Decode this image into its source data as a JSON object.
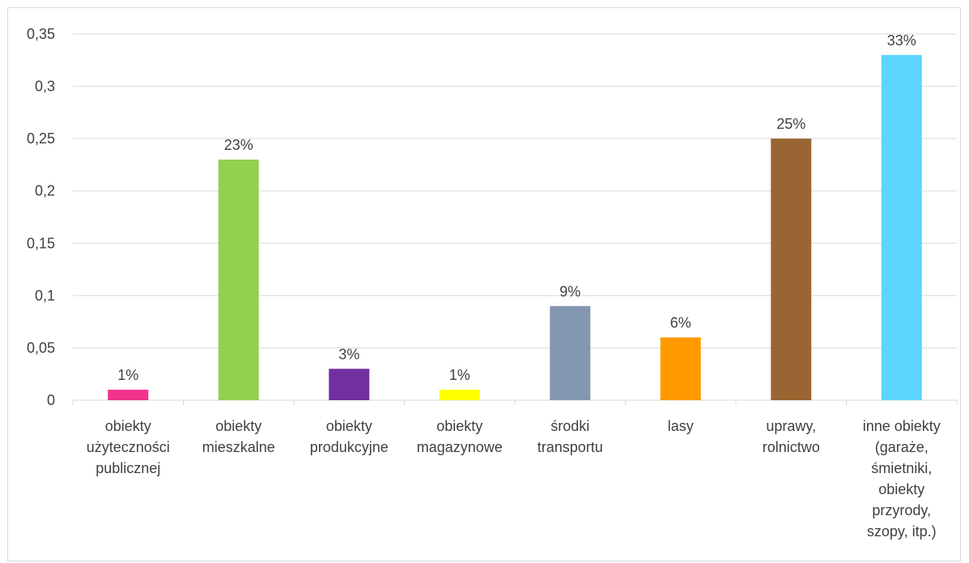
{
  "chart_data": {
    "type": "bar",
    "categories": [
      [
        "obiekty",
        "użyteczności",
        "publicznej"
      ],
      [
        "obiekty",
        "mieszkalne"
      ],
      [
        "obiekty",
        "produkcyjne"
      ],
      [
        "obiekty",
        "magazynowe"
      ],
      [
        "środki",
        "transportu"
      ],
      [
        "lasy"
      ],
      [
        "uprawy,",
        "rolnictwo"
      ],
      [
        "inne obiekty",
        "(garaże,",
        "śmietniki,",
        "obiekty",
        "przyrody,",
        "szopy, itp.)"
      ]
    ],
    "values": [
      0.01,
      0.23,
      0.03,
      0.01,
      0.09,
      0.06,
      0.25,
      0.33
    ],
    "data_labels": [
      "1%",
      "23%",
      "3%",
      "1%",
      "9%",
      "6%",
      "25%",
      "33%"
    ],
    "colors": [
      "#f2338c",
      "#92d050",
      "#7030a0",
      "#ffff00",
      "#8497b0",
      "#ff9900",
      "#996633",
      "#5dd5ff"
    ],
    "ylim": [
      0,
      0.35
    ],
    "yticks": [
      "0",
      "0,05",
      "0,1",
      "0,15",
      "0,2",
      "0,25",
      "0,3",
      "0,35"
    ],
    "grid": true,
    "legend": false,
    "title": "",
    "xlabel": "",
    "ylabel": ""
  }
}
